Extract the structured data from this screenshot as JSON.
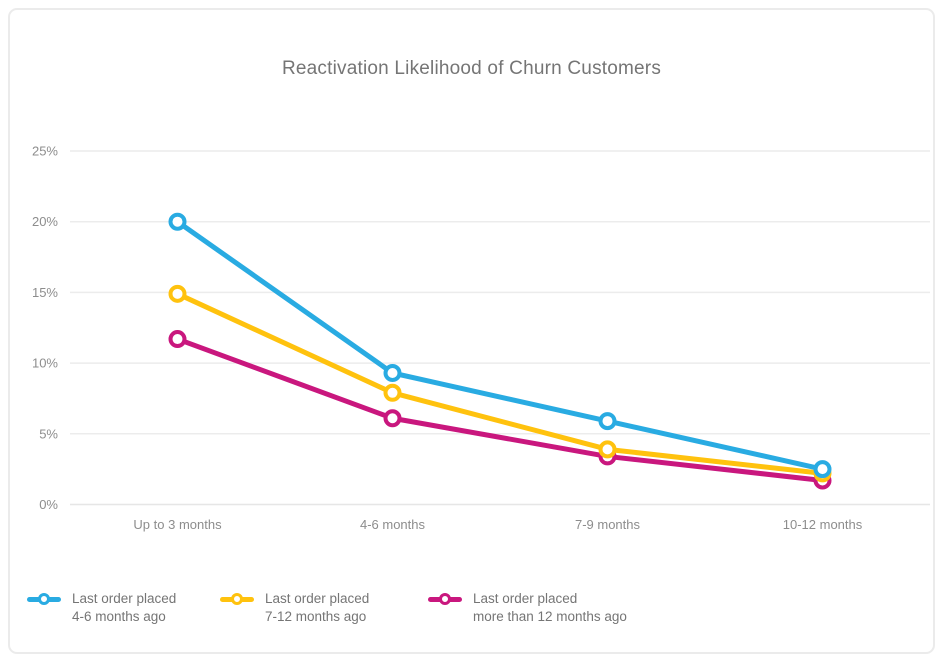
{
  "chart_data": {
    "type": "line",
    "title": "Reactivation Likelihood of Churn Customers",
    "categories": [
      "Up to 3 months",
      "4-6 months",
      "7-9 months",
      "10-12 months"
    ],
    "series": [
      {
        "name": "Last order placed 4-6 months ago",
        "label_lines": [
          "Last order placed",
          "4-6 months ago"
        ],
        "color": "#29ABE2",
        "values": [
          20,
          9.3,
          5.9,
          2.5
        ]
      },
      {
        "name": "Last order placed 7-12 months ago",
        "label_lines": [
          "Last order placed",
          "7-12 months ago"
        ],
        "color": "#FFC20E",
        "values": [
          14.9,
          7.9,
          3.9,
          2.2
        ]
      },
      {
        "name": "Last order placed more than 12 months ago",
        "label_lines": [
          "Last order placed",
          "more than 12 months ago"
        ],
        "color": "#C9177E",
        "values": [
          11.7,
          6.1,
          3.4,
          1.7
        ]
      }
    ],
    "xlabel": "",
    "ylabel": "",
    "ylim": [
      0,
      25
    ],
    "ytick_step": 5,
    "ytick_labels": [
      "0%",
      "5%",
      "10%",
      "15%",
      "20%",
      "25%"
    ],
    "grid": "horizontal",
    "legend_position": "bottom-left",
    "marker": "donut",
    "styles": {
      "title_color": "#757575",
      "axis_label_color": "#8d8d8d",
      "gridline_color": "#ececec",
      "baseline_color": "#e6e6e6",
      "background": "#ffffff",
      "card_border_color": "#ebebeb"
    }
  }
}
